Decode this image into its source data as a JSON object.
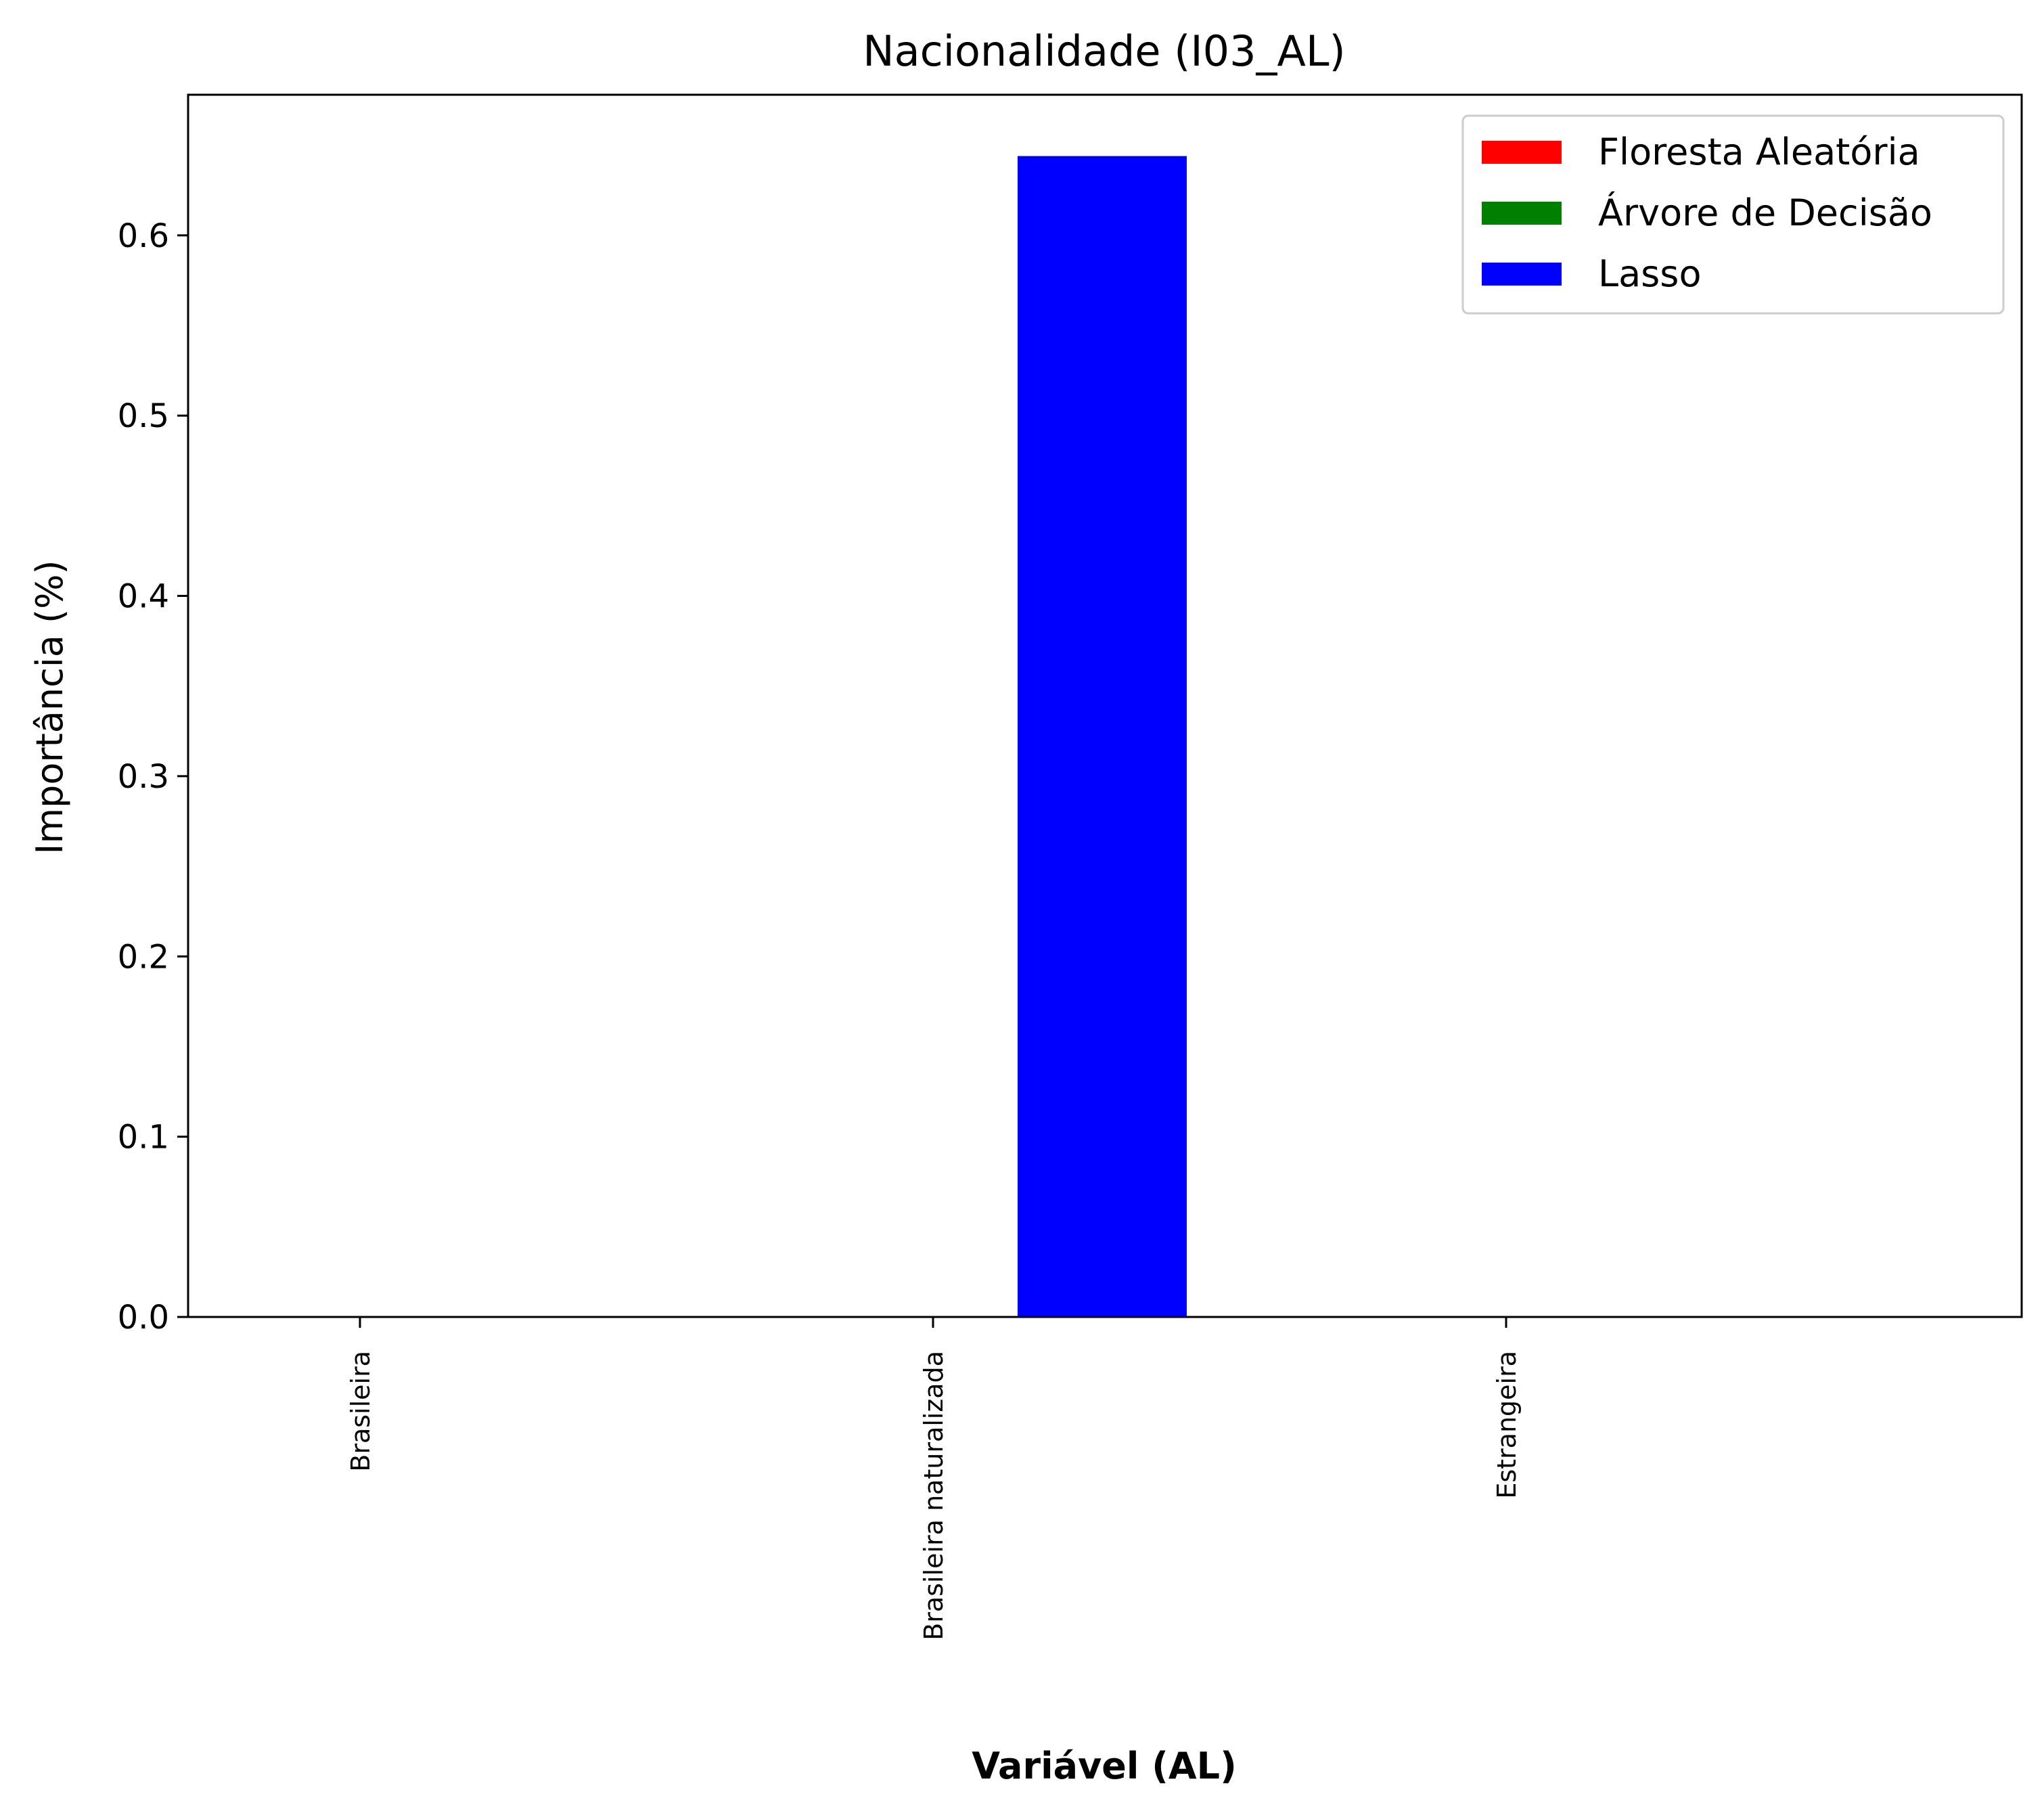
{
  "chart_data": {
    "type": "bar",
    "title": "Nacionalidade (I03_AL)",
    "xlabel": "Variável (AL)",
    "ylabel": "Importância (%)",
    "categories": [
      "Brasileira",
      "Brasileira naturalizada",
      "Estrangeira"
    ],
    "series": [
      {
        "name": "Floresta Aleatória",
        "color": "#ff0000",
        "values": [
          0,
          0,
          0
        ]
      },
      {
        "name": "Árvore de Decisão",
        "color": "#008000",
        "values": [
          0,
          0,
          0
        ]
      },
      {
        "name": "Lasso",
        "color": "#0000ff",
        "values": [
          0.0,
          0.644,
          0.0
        ]
      }
    ],
    "ylim": [
      0,
      0.678
    ],
    "yticks": [
      "0.0",
      "0.1",
      "0.2",
      "0.3",
      "0.4",
      "0.5",
      "0.6"
    ],
    "grid": false,
    "legend_position": "top-right"
  }
}
